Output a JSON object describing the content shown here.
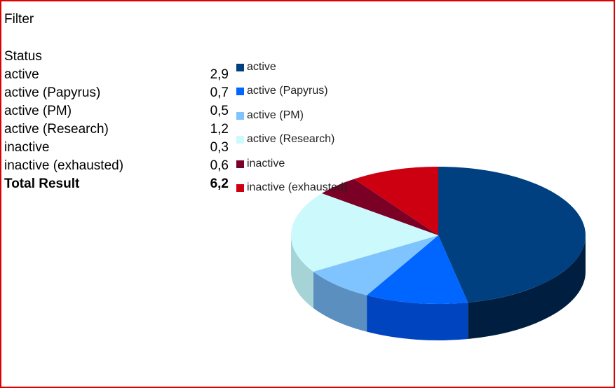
{
  "filter_label": "Filter",
  "table": {
    "header": "Status",
    "rows": [
      {
        "label": "active",
        "value": "2,9"
      },
      {
        "label": "active (Papyrus)",
        "value": "0,7"
      },
      {
        "label": "active (PM)",
        "value": "0,5"
      },
      {
        "label": "active (Research)",
        "value": "1,2"
      },
      {
        "label": "inactive",
        "value": "0,3"
      },
      {
        "label": "inactive (exhausted)",
        "value": "0,6"
      }
    ],
    "total": {
      "label": "Total Result",
      "value": "6,2"
    }
  },
  "chart_data": {
    "type": "pie",
    "style": "3d",
    "title": "",
    "legend_position": "right-top",
    "categories": [
      "active",
      "active (Papyrus)",
      "active (PM)",
      "active (Research)",
      "inactive",
      "inactive (exhausted)"
    ],
    "values": [
      2.9,
      0.7,
      0.5,
      1.2,
      0.3,
      0.6
    ],
    "colors": [
      "#003f80",
      "#0066ff",
      "#80c4ff",
      "#ccfafc",
      "#7a0025",
      "#cc0011"
    ],
    "side_colors": [
      "#001f40",
      "#0044c0",
      "#5a8fbf",
      "#a6d4d6",
      "#4a0015",
      "#8a000b"
    ]
  },
  "colors": {
    "border": "#e00000"
  }
}
